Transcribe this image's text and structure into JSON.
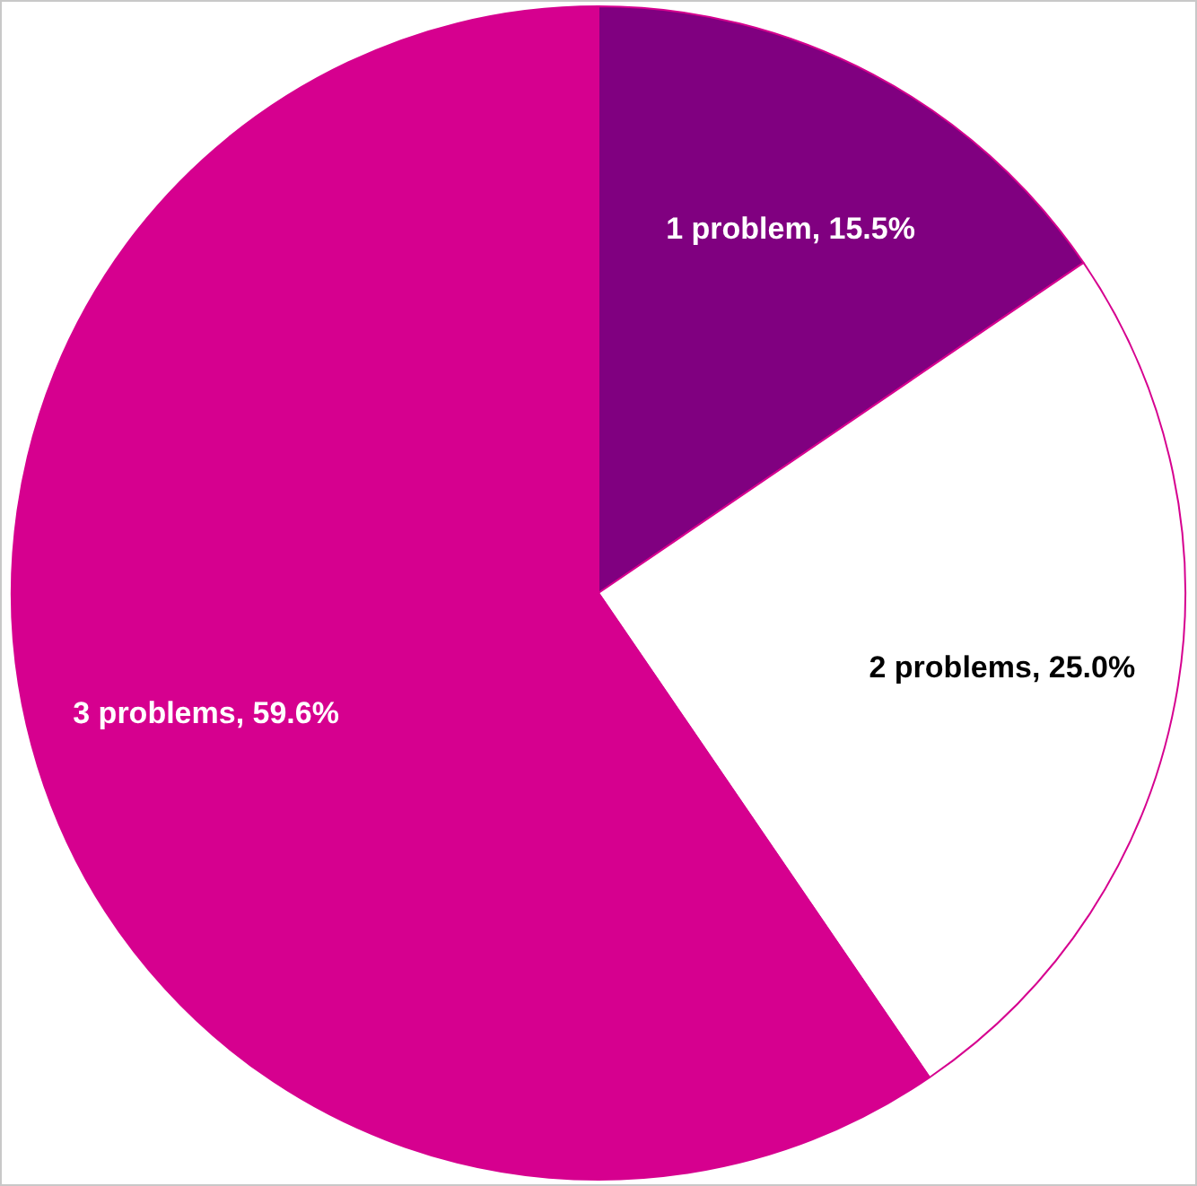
{
  "chart_data": {
    "type": "pie",
    "categories": [
      "1 problem",
      "2 problems",
      "3 problems"
    ],
    "values": [
      15.5,
      25.0,
      59.6
    ],
    "value_labels": [
      "15.5%",
      "25.0%",
      "59.6%"
    ],
    "colors": [
      "#800080",
      "#ffffff",
      "#d6008f"
    ],
    "legend": false
  }
}
